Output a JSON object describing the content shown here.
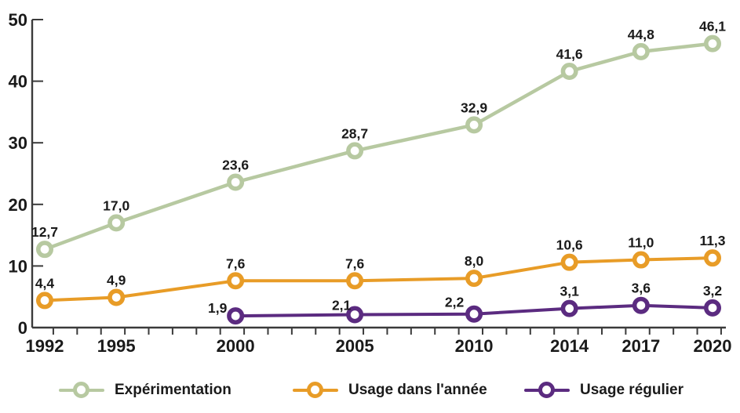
{
  "chart_data": {
    "type": "line",
    "title": "",
    "xlabel": "",
    "ylabel": "",
    "x": [
      1992,
      1995,
      2000,
      2005,
      2010,
      2014,
      2017,
      2020
    ],
    "x_tick_labels": [
      "1992",
      "1995",
      "2000",
      "2005",
      "2010",
      "2014",
      "2017",
      "2020"
    ],
    "x_minor_tick_interval_years": 1,
    "xlim": [
      1991.5,
      2020.6
    ],
    "y_ticks": [
      0,
      10,
      20,
      30,
      40,
      50
    ],
    "y_tick_labels": [
      "0",
      "10",
      "20",
      "30",
      "40",
      "50"
    ],
    "ylim": [
      0,
      50
    ],
    "grid": false,
    "decimal_separator": ",",
    "legend_position": "bottom",
    "axis_color": "#3b3b3b",
    "text_color": "#1a1a1a",
    "series": [
      {
        "name": "Expérimentation",
        "color": "#b7c9a1",
        "values": [
          12.7,
          17.0,
          23.6,
          28.7,
          32.9,
          41.6,
          44.8,
          46.1
        ],
        "labels": [
          "12,7",
          "17,0",
          "23,6",
          "28,7",
          "32,9",
          "41,6",
          "44,8",
          "46,1"
        ],
        "label_offsets": {}
      },
      {
        "name": "Usage dans l'année",
        "color": "#e89c27",
        "values": [
          4.4,
          4.9,
          7.6,
          7.6,
          8.0,
          10.6,
          11.0,
          11.3
        ],
        "labels": [
          "4,4",
          "4,9",
          "7,6",
          "7,6",
          "8,0",
          "10,6",
          "11,0",
          "11,3"
        ],
        "label_offsets": {}
      },
      {
        "name": "Usage régulier",
        "color": "#5b2b80",
        "values": [
          null,
          null,
          1.9,
          2.1,
          2.2,
          3.1,
          3.6,
          3.2
        ],
        "labels": [
          null,
          null,
          "1,9",
          "2,1",
          "2,2",
          "3,1",
          "3,6",
          "3,2"
        ],
        "label_offsets": {
          "2": [
            -23,
            12
          ],
          "3": [
            -17,
            10
          ],
          "4": [
            -25,
            7
          ]
        }
      }
    ]
  },
  "legend": {
    "items": [
      {
        "label": "Expérimentation"
      },
      {
        "label": "Usage dans l'année"
      },
      {
        "label": "Usage régulier"
      }
    ]
  }
}
